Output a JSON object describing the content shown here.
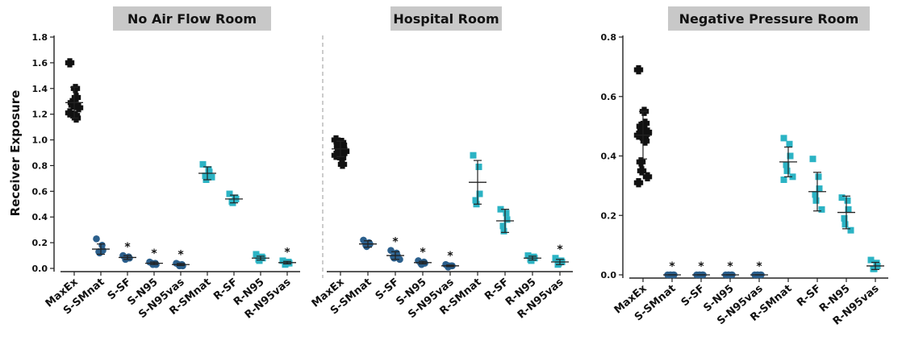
{
  "ylabel": "Receiver Exposure",
  "colors": {
    "black": "#111111",
    "navy": "#2b5f8c",
    "cyan": "#2bb3c4",
    "titlebox": "#c8c8c8"
  },
  "chart_data": [
    {
      "type": "scatter",
      "title": "No Air Flow Room",
      "ylabel": "Receiver Exposure",
      "ylim": [
        0,
        1.8
      ],
      "yticks": [
        "0.0",
        "0.2",
        "0.4",
        "0.6",
        "0.8",
        "1.0",
        "1.2",
        "1.4",
        "1.6",
        "1.8"
      ],
      "categories": [
        "MaxEx",
        "S-SMnat",
        "S-SF",
        "S-N95",
        "S-N95vas",
        "R-SMnat",
        "R-SF",
        "R-N95",
        "R-N95vas"
      ],
      "groups": [
        {
          "name": "MaxEx",
          "marker": "cross",
          "color": "black",
          "mean": 1.29,
          "sd": 0.12,
          "sig": false,
          "points": [
            1.6,
            1.4,
            1.33,
            1.29,
            1.27,
            1.25,
            1.21,
            1.19,
            1.17
          ]
        },
        {
          "name": "S-SMnat",
          "marker": "circle",
          "color": "navy",
          "mean": 0.15,
          "sd": 0.04,
          "sig": false,
          "points": [
            0.23,
            0.18,
            0.14,
            0.13,
            0.12
          ]
        },
        {
          "name": "S-SF",
          "marker": "circle",
          "color": "navy",
          "mean": 0.085,
          "sd": 0.015,
          "sig": true,
          "points": [
            0.1,
            0.09,
            0.08,
            0.07,
            0.08
          ]
        },
        {
          "name": "S-N95",
          "marker": "circle",
          "color": "navy",
          "mean": 0.04,
          "sd": 0.01,
          "sig": true,
          "points": [
            0.05,
            0.04,
            0.03,
            0.04,
            0.03
          ]
        },
        {
          "name": "S-N95vas",
          "marker": "circle",
          "color": "navy",
          "mean": 0.03,
          "sd": 0.008,
          "sig": true,
          "points": [
            0.04,
            0.03,
            0.02,
            0.03,
            0.02
          ]
        },
        {
          "name": "R-SMnat",
          "marker": "square",
          "color": "cyan",
          "mean": 0.74,
          "sd": 0.05,
          "sig": false,
          "points": [
            0.81,
            0.77,
            0.75,
            0.72,
            0.69,
            0.71
          ]
        },
        {
          "name": "R-SF",
          "marker": "square",
          "color": "cyan",
          "mean": 0.54,
          "sd": 0.03,
          "sig": false,
          "points": [
            0.58,
            0.55,
            0.54,
            0.52,
            0.51
          ]
        },
        {
          "name": "R-N95",
          "marker": "square",
          "color": "cyan",
          "mean": 0.08,
          "sd": 0.015,
          "sig": false,
          "points": [
            0.11,
            0.09,
            0.08,
            0.07,
            0.06
          ]
        },
        {
          "name": "R-N95vas",
          "marker": "square",
          "color": "cyan",
          "mean": 0.045,
          "sd": 0.01,
          "sig": true,
          "points": [
            0.06,
            0.05,
            0.04,
            0.03,
            0.04
          ]
        }
      ]
    },
    {
      "type": "scatter",
      "title": "Hospital Room",
      "ylim": [
        0,
        1.8
      ],
      "categories": [
        "MaxEx",
        "S-SMnat",
        "S-SF",
        "S-N95",
        "S-N95vas",
        "R-SMnat",
        "R-SF",
        "R-N95",
        "R-N95vas"
      ],
      "groups": [
        {
          "name": "MaxEx",
          "marker": "cross",
          "color": "black",
          "mean": 0.93,
          "sd": 0.06,
          "sig": false,
          "points": [
            1.0,
            0.98,
            0.96,
            0.95,
            0.93,
            0.91,
            0.88,
            0.86,
            0.81
          ]
        },
        {
          "name": "S-SMnat",
          "marker": "circle",
          "color": "navy",
          "mean": 0.19,
          "sd": 0.025,
          "sig": false,
          "points": [
            0.22,
            0.2,
            0.19,
            0.18,
            0.17
          ]
        },
        {
          "name": "S-SF",
          "marker": "circle",
          "color": "navy",
          "mean": 0.1,
          "sd": 0.03,
          "sig": true,
          "points": [
            0.14,
            0.12,
            0.1,
            0.09,
            0.08,
            0.07
          ]
        },
        {
          "name": "S-N95",
          "marker": "circle",
          "color": "navy",
          "mean": 0.045,
          "sd": 0.01,
          "sig": true,
          "points": [
            0.06,
            0.05,
            0.04,
            0.04,
            0.03
          ]
        },
        {
          "name": "S-N95vas",
          "marker": "circle",
          "color": "navy",
          "mean": 0.02,
          "sd": 0.006,
          "sig": true,
          "points": [
            0.03,
            0.02,
            0.02,
            0.01,
            0.02
          ]
        },
        {
          "name": "R-SMnat",
          "marker": "square",
          "color": "cyan",
          "mean": 0.67,
          "sd": 0.17,
          "sig": false,
          "points": [
            0.88,
            0.79,
            0.58,
            0.53,
            0.5
          ]
        },
        {
          "name": "R-SF",
          "marker": "square",
          "color": "cyan",
          "mean": 0.37,
          "sd": 0.09,
          "sig": false,
          "points": [
            0.46,
            0.43,
            0.38,
            0.33,
            0.29
          ]
        },
        {
          "name": "R-N95",
          "marker": "square",
          "color": "cyan",
          "mean": 0.08,
          "sd": 0.015,
          "sig": false,
          "points": [
            0.1,
            0.09,
            0.08,
            0.07,
            0.06
          ]
        },
        {
          "name": "R-N95vas",
          "marker": "square",
          "color": "cyan",
          "mean": 0.05,
          "sd": 0.02,
          "sig": true,
          "points": [
            0.08,
            0.06,
            0.05,
            0.03,
            0.04
          ]
        }
      ]
    },
    {
      "type": "scatter",
      "title": "Negative Pressure Room",
      "ylim": [
        0,
        0.8
      ],
      "yticks": [
        "0.0",
        "0.2",
        "0.4",
        "0.6",
        "0.8"
      ],
      "categories": [
        "MaxEx",
        "S-SMnat",
        "S-SF",
        "S-N95",
        "S-N95vas",
        "R-SMnat",
        "R-SF",
        "R-N95",
        "R-N95vas"
      ],
      "groups": [
        {
          "name": "MaxEx",
          "marker": "cross",
          "color": "black",
          "mean": 0.47,
          "sd": 0.08,
          "sig": false,
          "points": [
            0.69,
            0.55,
            0.51,
            0.5,
            0.49,
            0.48,
            0.47,
            0.46,
            0.45,
            0.38,
            0.35,
            0.33,
            0.31
          ]
        },
        {
          "name": "S-SMnat",
          "marker": "circle",
          "color": "navy",
          "mean": 0.0,
          "sd": 0.0,
          "sig": true,
          "points": [
            0.0,
            0.0,
            0.0,
            0.0,
            0.0
          ]
        },
        {
          "name": "S-SF",
          "marker": "circle",
          "color": "navy",
          "mean": 0.0,
          "sd": 0.0,
          "sig": true,
          "points": [
            0.0,
            0.0,
            0.0,
            0.0,
            0.0
          ]
        },
        {
          "name": "S-N95",
          "marker": "circle",
          "color": "navy",
          "mean": 0.0,
          "sd": 0.0,
          "sig": true,
          "points": [
            0.0,
            0.0,
            0.0,
            0.0,
            0.0
          ]
        },
        {
          "name": "S-N95vas",
          "marker": "circle",
          "color": "navy",
          "mean": 0.0,
          "sd": 0.0,
          "sig": true,
          "points": [
            0.0,
            0.0,
            0.0,
            0.0,
            0.0
          ]
        },
        {
          "name": "R-SMnat",
          "marker": "square",
          "color": "cyan",
          "mean": 0.38,
          "sd": 0.05,
          "sig": false,
          "points": [
            0.46,
            0.44,
            0.4,
            0.37,
            0.35,
            0.33,
            0.32
          ]
        },
        {
          "name": "R-SF",
          "marker": "square",
          "color": "cyan",
          "mean": 0.28,
          "sd": 0.065,
          "sig": false,
          "points": [
            0.39,
            0.33,
            0.29,
            0.27,
            0.25,
            0.22
          ]
        },
        {
          "name": "R-N95",
          "marker": "square",
          "color": "cyan",
          "mean": 0.21,
          "sd": 0.055,
          "sig": false,
          "points": [
            0.26,
            0.25,
            0.22,
            0.19,
            0.17,
            0.15
          ]
        },
        {
          "name": "R-N95vas",
          "marker": "square",
          "color": "cyan",
          "mean": 0.03,
          "sd": 0.012,
          "sig": false,
          "points": [
            0.05,
            0.04,
            0.03,
            0.02,
            0.02
          ]
        }
      ]
    }
  ]
}
